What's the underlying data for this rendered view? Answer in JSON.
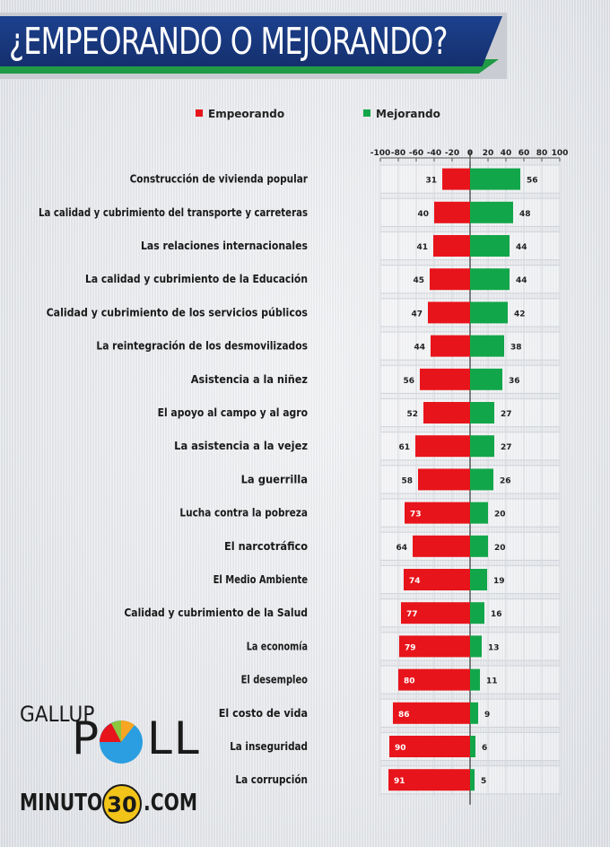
{
  "header": {
    "title": "¿EMPEORANDO O MEJORANDO?"
  },
  "colors": {
    "empeorando": "#e8141b",
    "mejorando": "#12a64a",
    "banner": "#17367a",
    "banner_accent": "#1f9a46"
  },
  "logos": {
    "gallup": "GALLUP",
    "poll_p": "P",
    "poll_ll": "LL",
    "minuto_left": "MINUTO",
    "minuto_num": "30",
    "minuto_right": ".COM"
  },
  "chart_data": {
    "type": "bar",
    "orientation": "horizontal-diverging",
    "legend": [
      "Empeorando",
      "Mejorando"
    ],
    "legend_placement": "top",
    "xlim": [
      -100,
      100
    ],
    "ticks": [
      "-100",
      "-80",
      "-60",
      "-40",
      "-20",
      "0",
      "20",
      "40",
      "60",
      "80",
      "100"
    ],
    "grid": true,
    "categories": [
      "Construcción de vivienda popular",
      "La calidad y cubrimiento del transporte y carreteras",
      "Las relaciones internacionales",
      "La calidad y cubrimiento de la Educación",
      "Calidad y cubrimiento de los servicios públicos",
      "La reintegración de los desmovilizados",
      "Asistencia a la niñez",
      "El apoyo al campo y al agro",
      "La asistencia a la vejez",
      "La guerrilla",
      "Lucha contra la pobreza",
      "El narcotráfico",
      "El Medio Ambiente",
      "Calidad y cubrimiento de la Salud",
      "La economía",
      "El desempleo",
      "El costo de vida",
      "La inseguridad",
      "La corrupción"
    ],
    "series": [
      {
        "name": "Empeorando",
        "values": [
          31,
          40,
          41,
          45,
          47,
          44,
          56,
          52,
          61,
          58,
          73,
          64,
          74,
          77,
          79,
          80,
          86,
          90,
          91
        ]
      },
      {
        "name": "Mejorando",
        "values": [
          56,
          48,
          44,
          44,
          42,
          38,
          36,
          27,
          27,
          26,
          20,
          20,
          19,
          16,
          13,
          11,
          9,
          6,
          5
        ]
      }
    ]
  }
}
